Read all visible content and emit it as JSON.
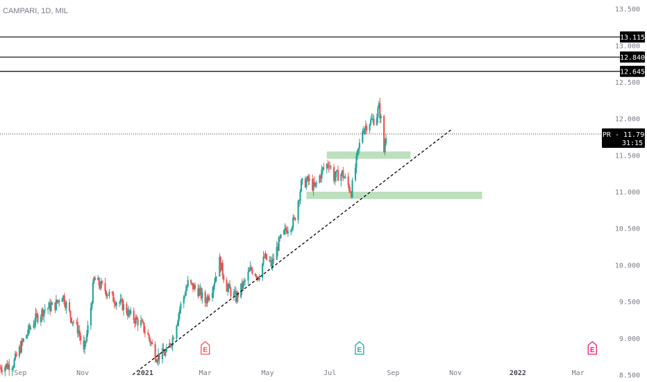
{
  "header": {
    "symbol_label": "CAMPARI, 1D, MIL"
  },
  "price_axis": {
    "ticks": [
      "13.500",
      "13.000",
      "12.500",
      "12.000",
      "11.500",
      "11.000",
      "10.500",
      "10.000",
      "9.500",
      "9.000",
      "8.500"
    ]
  },
  "time_axis": {
    "ticks": [
      {
        "label": "Sep",
        "bold": false
      },
      {
        "label": "Nov",
        "bold": false
      },
      {
        "label": "2021",
        "bold": true
      },
      {
        "label": "Mar",
        "bold": false
      },
      {
        "label": "May",
        "bold": false
      },
      {
        "label": "Jul",
        "bold": false
      },
      {
        "label": "Sep",
        "bold": false
      },
      {
        "label": "Nov",
        "bold": false
      },
      {
        "label": "2022",
        "bold": true
      },
      {
        "label": "Mar",
        "bold": false
      }
    ]
  },
  "colors": {
    "up": "#26a69a",
    "down": "#ef5350",
    "zone": "#a5d6a7",
    "line": "#000000",
    "axis_text": "#787b86",
    "earnings_past": "#ef5350",
    "earnings_green": "#26a69a",
    "earnings_future": "#e91e63"
  },
  "chart_data": {
    "type": "candlestick",
    "title": "CAMPARI, 1D, MIL",
    "ylim": [
      8.4,
      13.62
    ],
    "x_range": [
      "2020-08-12",
      "2022-03-25"
    ],
    "x_ticks": [
      "2020-09-01",
      "2020-11-01",
      "2021-01-01",
      "2021-03-01",
      "2021-05-01",
      "2021-07-01",
      "2021-09-01",
      "2021-11-01",
      "2022-01-01",
      "2022-03-01"
    ],
    "price_path_anchors": [
      [
        "2020-08-12",
        8.6
      ],
      [
        "2020-08-25",
        8.65
      ],
      [
        "2020-09-05",
        9.0
      ],
      [
        "2020-09-15",
        9.25
      ],
      [
        "2020-09-25",
        9.4
      ],
      [
        "2020-10-05",
        9.45
      ],
      [
        "2020-10-12",
        9.6
      ],
      [
        "2020-10-20",
        9.3
      ],
      [
        "2020-10-28",
        9.1
      ],
      [
        "2020-11-02",
        8.8
      ],
      [
        "2020-11-08",
        9.3
      ],
      [
        "2020-11-12",
        9.8
      ],
      [
        "2020-11-20",
        9.7
      ],
      [
        "2020-11-30",
        9.55
      ],
      [
        "2020-12-10",
        9.45
      ],
      [
        "2020-12-18",
        9.3
      ],
      [
        "2020-12-28",
        9.2
      ],
      [
        "2021-01-05",
        9.0
      ],
      [
        "2021-01-12",
        8.75
      ],
      [
        "2021-01-22",
        8.8
      ],
      [
        "2021-01-28",
        9.0
      ],
      [
        "2021-02-04",
        9.4
      ],
      [
        "2021-02-12",
        9.75
      ],
      [
        "2021-02-22",
        9.65
      ],
      [
        "2021-03-01",
        9.5
      ],
      [
        "2021-03-08",
        9.7
      ],
      [
        "2021-03-15",
        10.05
      ],
      [
        "2021-03-22",
        9.7
      ],
      [
        "2021-03-31",
        9.55
      ],
      [
        "2021-04-08",
        9.75
      ],
      [
        "2021-04-15",
        9.95
      ],
      [
        "2021-04-22",
        9.85
      ],
      [
        "2021-04-28",
        10.1
      ],
      [
        "2021-05-05",
        10.0
      ],
      [
        "2021-05-12",
        10.3
      ],
      [
        "2021-05-20",
        10.5
      ],
      [
        "2021-05-27",
        10.6
      ],
      [
        "2021-06-03",
        11.1
      ],
      [
        "2021-06-10",
        11.15
      ],
      [
        "2021-06-16",
        11.05
      ],
      [
        "2021-06-24",
        11.3
      ],
      [
        "2021-06-30",
        11.4
      ],
      [
        "2021-07-05",
        11.2
      ],
      [
        "2021-07-13",
        11.25
      ],
      [
        "2021-07-22",
        11.0
      ],
      [
        "2021-07-28",
        11.5
      ],
      [
        "2021-08-02",
        11.85
      ],
      [
        "2021-08-08",
        11.95
      ],
      [
        "2021-08-15",
        12.0
      ],
      [
        "2021-08-18",
        12.15
      ],
      [
        "2021-08-21",
        11.9
      ],
      [
        "2021-08-23",
        11.55
      ],
      [
        "2021-08-25",
        11.79
      ]
    ],
    "horizontal_lines": [
      13.115,
      12.84,
      12.645
    ],
    "current_price": {
      "symbol": "CPR",
      "value": 11.79,
      "countdown": "31:15"
    },
    "zones": [
      {
        "from": "2021-06-28",
        "to": "2021-09-18",
        "low": 11.45,
        "high": 11.55
      },
      {
        "from": "2021-06-08",
        "to": "2021-11-27",
        "low": 10.9,
        "high": 11.0
      }
    ],
    "trendline": {
      "from": [
        "2020-12-20",
        8.5
      ],
      "to": [
        "2021-10-28",
        11.85
      ]
    },
    "earnings": [
      {
        "date": "2021-03-01",
        "label": "E",
        "status": "past"
      },
      {
        "date": "2021-07-30",
        "label": "E",
        "status": "past-green"
      },
      {
        "date": "2022-03-15",
        "label": "E",
        "status": "future"
      }
    ]
  }
}
